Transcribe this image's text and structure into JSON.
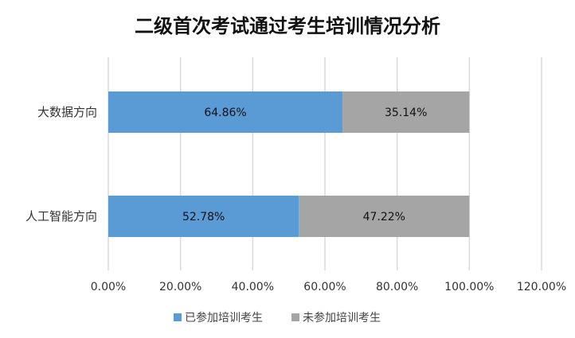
{
  "colors": {
    "accent_blue": "#5b9bd5",
    "accent_gray": "#a5a5a5",
    "grid": "#d9d9d9"
  },
  "chart_data": {
    "type": "bar",
    "orientation": "horizontal",
    "stacked": true,
    "title": "二级首次考试通过考生培训情况分析",
    "categories": [
      "大数据方向",
      "人工智能方向"
    ],
    "series": [
      {
        "name": "已参加培训考生",
        "values": [
          64.86,
          52.78
        ],
        "labels": [
          "64.86%",
          "52.78%"
        ],
        "color": "#5b9bd5"
      },
      {
        "name": "未参加培训考生",
        "values": [
          35.14,
          47.22
        ],
        "labels": [
          "35.14%",
          "47.22%"
        ],
        "color": "#a5a5a5"
      }
    ],
    "xlim": [
      0,
      120
    ],
    "xticks": [
      0,
      20,
      40,
      60,
      80,
      100,
      120
    ],
    "xtick_labels": [
      "0.00%",
      "20.00%",
      "40.00%",
      "60.00%",
      "80.00%",
      "100.00%",
      "120.00%"
    ],
    "xlabel": "",
    "ylabel": "",
    "grid": true,
    "legend_position": "bottom"
  }
}
